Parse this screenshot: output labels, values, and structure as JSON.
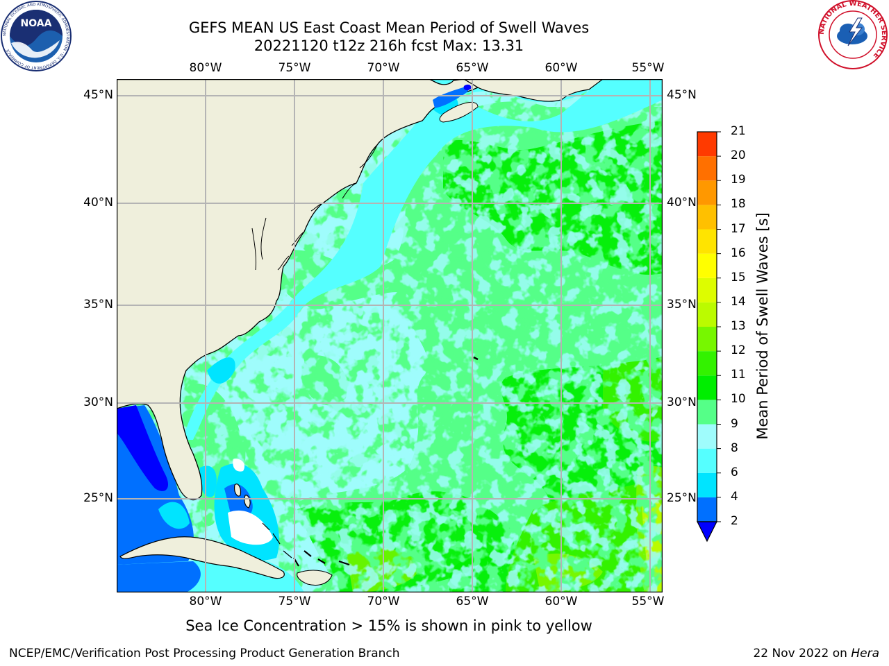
{
  "header": {
    "title_line1": "GEFS MEAN US East Coast Mean Period of Swell Waves",
    "title_line2": "20221120 t12z 216h fcst   Max: 13.31"
  },
  "logos": {
    "noaa_text": "NOAA",
    "noaa_ring_text": "NATIONAL OCEANIC AND ATMOSPHERIC ADMINISTRATION · U.S. DEPARTMENT OF COMMERCE",
    "nws_ring_text": "NATIONAL WEATHER SERVICE"
  },
  "map": {
    "lon_labels": [
      "80°W",
      "75°W",
      "70°W",
      "65°W",
      "60°W",
      "55°W"
    ],
    "lat_labels": [
      "45°N",
      "40°N",
      "35°N",
      "30°N",
      "25°N"
    ],
    "colors": {
      "land": "#efefdc",
      "ocean_default": "#9ffcfc",
      "grid": "#b4b4b4"
    }
  },
  "colorbar": {
    "label": "Mean Period of Swell Waves [s]",
    "ticks": [
      "2",
      "4",
      "6",
      "8",
      "9",
      "10",
      "11",
      "12",
      "13",
      "14",
      "15",
      "16",
      "17",
      "18",
      "19",
      "20",
      "21"
    ],
    "colors": [
      "#0070ff",
      "#00e4ff",
      "#55ffff",
      "#9ffcfc",
      "#55ff88",
      "#00ee00",
      "#33f200",
      "#77f700",
      "#bbfb00",
      "#ddfd00",
      "#ffff00",
      "#ffe400",
      "#ffc000",
      "#ff9800",
      "#ff7000",
      "#ff3a00",
      "#ff0000"
    ],
    "under_color": "#0000ff"
  },
  "footer": {
    "note": "Sea Ice Concentration > 15% is shown in pink to yellow",
    "branch": "NCEP/EMC/Verification Post Processing Product Generation Branch",
    "date": "22 Nov 2022 on",
    "system": "Hera"
  }
}
